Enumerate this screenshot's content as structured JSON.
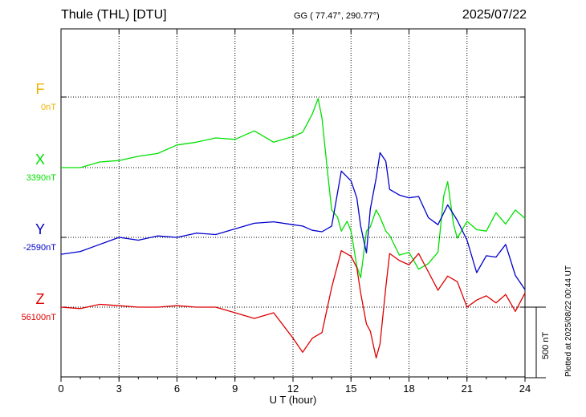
{
  "header": {
    "station": "Thule (THL)  [DTU]",
    "coords": "GG ( 77.47°, 290.77°)",
    "date": "2025/07/22",
    "plotted": "Plotted at 2025/08/22 00:44 UT"
  },
  "colors": {
    "F": "#f0b400",
    "X": "#00e000",
    "Y": "#0000cc",
    "Z": "#dd0000",
    "grid": "#000000"
  },
  "chart_data": {
    "type": "line",
    "xlabel": "U T (hour)",
    "xlim": [
      0,
      24
    ],
    "xticks": [
      0,
      3,
      6,
      9,
      12,
      15,
      18,
      21,
      24
    ],
    "scale_bar": "500 nT",
    "scale_bar_nT": 500,
    "channels": [
      {
        "name": "F",
        "baseline": "0nT",
        "x": [],
        "y": []
      },
      {
        "name": "X",
        "baseline": "3390nT",
        "x": [
          0,
          1,
          2,
          3,
          4,
          5,
          6,
          7,
          8,
          9,
          10,
          11,
          12,
          12.5,
          13,
          13.3,
          13.5,
          13.8,
          14,
          14.3,
          14.5,
          14.8,
          15,
          15.3,
          15.5,
          15.8,
          16,
          16.3,
          16.5,
          16.8,
          17,
          17.5,
          18,
          18.5,
          19,
          19.5,
          19.8,
          20,
          20.3,
          20.5,
          21,
          21.5,
          22,
          22.5,
          23,
          23.5,
          24
        ],
        "y": [
          0,
          0,
          40,
          50,
          80,
          100,
          160,
          180,
          210,
          200,
          260,
          180,
          220,
          250,
          380,
          490,
          350,
          -50,
          -300,
          -350,
          -450,
          -380,
          -450,
          -700,
          -780,
          -450,
          -420,
          -300,
          -350,
          -450,
          -480,
          -620,
          -600,
          -720,
          -680,
          -600,
          -200,
          -100,
          -400,
          -500,
          -380,
          -440,
          -450,
          -320,
          -400,
          -300,
          -360
        ]
      },
      {
        "name": "Y",
        "baseline": "-2590nT",
        "x": [
          0,
          1,
          2,
          3,
          4,
          5,
          6,
          7,
          8,
          9,
          10,
          11,
          12,
          12.5,
          13,
          13.5,
          14,
          14.5,
          15,
          15.3,
          15.5,
          15.8,
          16,
          16.3,
          16.5,
          16.8,
          17,
          17.5,
          18,
          18.5,
          19,
          19.5,
          20,
          20.5,
          21,
          21.5,
          22,
          22.5,
          23,
          23.5,
          24
        ],
        "y": [
          -120,
          -100,
          -50,
          0,
          -20,
          10,
          0,
          30,
          20,
          60,
          100,
          110,
          90,
          80,
          50,
          40,
          80,
          470,
          400,
          280,
          80,
          -110,
          200,
          420,
          600,
          540,
          340,
          300,
          280,
          290,
          140,
          90,
          230,
          120,
          -20,
          -250,
          -130,
          -140,
          -50,
          -270,
          -370
        ]
      },
      {
        "name": "Z",
        "baseline": "56100nT",
        "x": [
          0,
          1,
          2,
          3,
          4,
          5,
          6,
          7,
          8,
          9,
          10,
          11,
          12,
          12.5,
          13,
          13.5,
          14,
          14.5,
          15,
          15.3,
          15.5,
          15.8,
          16,
          16.3,
          16.5,
          16.8,
          17,
          17.5,
          18,
          18.5,
          19,
          19.5,
          20,
          20.5,
          21,
          21.5,
          22,
          22.5,
          23,
          23.5,
          24
        ],
        "y": [
          0,
          -10,
          20,
          10,
          0,
          0,
          10,
          0,
          0,
          -40,
          -80,
          -40,
          -220,
          -320,
          -220,
          -180,
          140,
          400,
          360,
          280,
          100,
          -120,
          -170,
          -360,
          -260,
          140,
          380,
          330,
          300,
          380,
          250,
          120,
          220,
          180,
          0,
          50,
          80,
          30,
          90,
          -30,
          100
        ]
      }
    ]
  }
}
